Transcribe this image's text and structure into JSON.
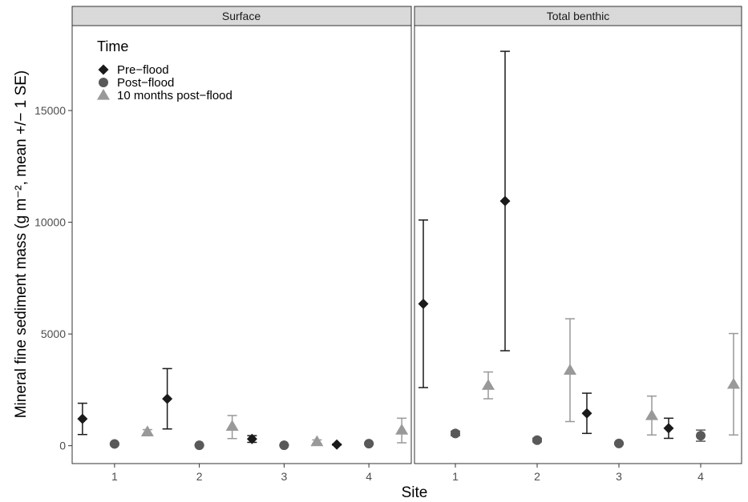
{
  "chart_data": {
    "type": "scatter",
    "subtype": "point-with-error-bars, faceted",
    "xlabel": "Site",
    "ylabel": "Mineral fine sediment mass (g m⁻², mean +/− 1 SE)",
    "ylim": [
      -800,
      18800
    ],
    "yticks": [
      0,
      5000,
      10000,
      15000
    ],
    "categories": [
      "1",
      "2",
      "3",
      "4"
    ],
    "legend": {
      "title": "Time",
      "placement": "top-left",
      "entries": [
        {
          "label": "Pre−flood",
          "shape": "diamond",
          "color": "#1a1a1a"
        },
        {
          "label": "Post−flood",
          "shape": "circle",
          "color": "#595959"
        },
        {
          "label": "10 months post−flood",
          "shape": "triangle",
          "color": "#999999"
        }
      ]
    },
    "panels": [
      {
        "title": "Surface",
        "series": [
          {
            "name": "Pre−flood",
            "mean": [
              1200,
              2100,
              300,
              50
            ],
            "lower": [
              500,
              750,
              150,
              30
            ],
            "upper": [
              1900,
              3450,
              450,
              70
            ]
          },
          {
            "name": "Post−flood",
            "mean": [
              80,
              20,
              20,
              90
            ],
            "lower": [
              40,
              10,
              10,
              50
            ],
            "upper": [
              120,
              30,
              30,
              130
            ]
          },
          {
            "name": "10 months post−flood",
            "mean": [
              620,
              870,
              180,
              700
            ],
            "lower": [
              520,
              320,
              100,
              130
            ],
            "upper": [
              720,
              1350,
              260,
              1230
            ]
          }
        ]
      },
      {
        "title": "Total benthic",
        "series": [
          {
            "name": "Pre−flood",
            "mean": [
              6350,
              10950,
              1450,
              780
            ],
            "lower": [
              2600,
              4250,
              550,
              330
            ],
            "upper": [
              10100,
              17650,
              2350,
              1230
            ]
          },
          {
            "name": "Post−flood",
            "mean": [
              550,
              250,
              100,
              450
            ],
            "lower": [
              450,
              170,
              60,
              200
            ],
            "upper": [
              650,
              330,
              140,
              700
            ]
          },
          {
            "name": "10 months post−flood",
            "mean": [
              2700,
              3380,
              1350,
              2750
            ],
            "lower": [
              2100,
              1080,
              480,
              480
            ],
            "upper": [
              3300,
              5680,
              2220,
              5020
            ]
          }
        ]
      }
    ]
  },
  "style": {
    "panel_border": "#333333",
    "strip_fill": "#d9d9d9",
    "series_colors": [
      "#1a1a1a",
      "#595959",
      "#999999"
    ]
  }
}
